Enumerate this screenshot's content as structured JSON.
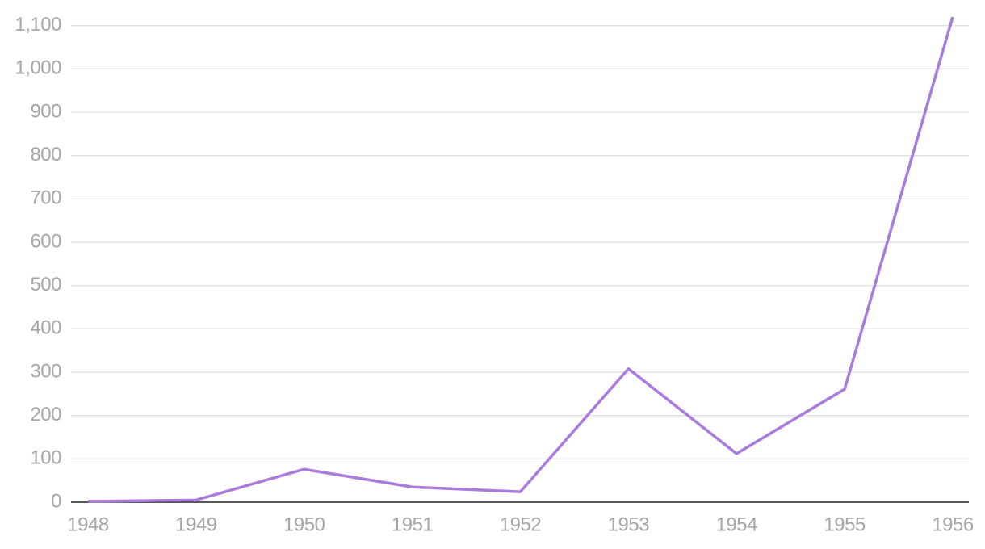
{
  "chart_data": {
    "type": "line",
    "x": [
      1948,
      1949,
      1950,
      1951,
      1952,
      1953,
      1954,
      1955,
      1956
    ],
    "series": [
      {
        "color": "#a97bdc",
        "values": [
          2,
          5,
          76,
          35,
          24,
          308,
          112,
          261,
          1120
        ]
      }
    ],
    "xlim": [
      1948,
      1956
    ],
    "xticks": [
      1948,
      1949,
      1950,
      1951,
      1952,
      1953,
      1954,
      1955,
      1956
    ],
    "ylim": [
      0,
      1120
    ],
    "yticks": [
      0,
      100,
      200,
      300,
      400,
      500,
      600,
      700,
      800,
      900,
      {
        "value": 1000,
        "label": "1,000"
      },
      {
        "value": 1100,
        "label": "1,100"
      }
    ],
    "grid": true
  }
}
